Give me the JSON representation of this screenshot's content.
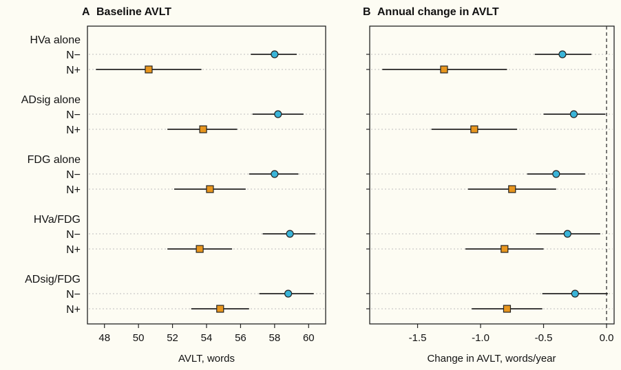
{
  "colors": {
    "background": "#fdfcf3",
    "n_minus": "#3ab4d8",
    "n_plus": "#e8961e",
    "stroke": "#222222",
    "grid": "#bdbdbd"
  },
  "groups": [
    "HVa alone",
    "ADsig alone",
    "FDG alone",
    "HVa/FDG",
    "ADsig/FDG"
  ],
  "row_labels": [
    "N−",
    "N+"
  ],
  "chart_data": [
    {
      "type": "forest",
      "panel_letter": "A",
      "title": "Baseline AVLT",
      "xlabel": "AVLT, words",
      "xlim": [
        47,
        61
      ],
      "ticks": [
        48,
        50,
        52,
        54,
        56,
        58,
        60
      ],
      "tick_labels": [
        "48",
        "50",
        "52",
        "54",
        "56",
        "58",
        "60"
      ],
      "reference_line": null,
      "grid": "horizontal dotted",
      "series": [
        {
          "group": "HVa alone",
          "row": "N−",
          "estimate": 58.0,
          "low": 56.6,
          "high": 59.3
        },
        {
          "group": "HVa alone",
          "row": "N+",
          "estimate": 50.6,
          "low": 47.5,
          "high": 53.7
        },
        {
          "group": "ADsig alone",
          "row": "N−",
          "estimate": 58.2,
          "low": 56.7,
          "high": 59.7
        },
        {
          "group": "ADsig alone",
          "row": "N+",
          "estimate": 53.8,
          "low": 51.7,
          "high": 55.8
        },
        {
          "group": "FDG alone",
          "row": "N−",
          "estimate": 58.0,
          "low": 56.5,
          "high": 59.4
        },
        {
          "group": "FDG alone",
          "row": "N+",
          "estimate": 54.2,
          "low": 52.1,
          "high": 56.3
        },
        {
          "group": "HVa/FDG",
          "row": "N−",
          "estimate": 58.9,
          "low": 57.3,
          "high": 60.4
        },
        {
          "group": "HVa/FDG",
          "row": "N+",
          "estimate": 53.6,
          "low": 51.7,
          "high": 55.5
        },
        {
          "group": "ADsig/FDG",
          "row": "N−",
          "estimate": 58.8,
          "low": 57.1,
          "high": 60.3
        },
        {
          "group": "ADsig/FDG",
          "row": "N+",
          "estimate": 54.8,
          "low": 53.1,
          "high": 56.5
        }
      ]
    },
    {
      "type": "forest",
      "panel_letter": "B",
      "title": "Annual change in AVLT",
      "xlabel": "Change in AVLT, words/year",
      "xlim": [
        -1.88,
        0.06
      ],
      "ticks": [
        -1.5,
        -1.0,
        -0.5,
        0.0
      ],
      "tick_labels": [
        "-1.5",
        "-1.0",
        "-0.5",
        "0.0"
      ],
      "reference_line": 0.0,
      "grid": "horizontal dotted",
      "series": [
        {
          "group": "HVa alone",
          "row": "N−",
          "estimate": -0.35,
          "low": -0.57,
          "high": -0.12
        },
        {
          "group": "HVa alone",
          "row": "N+",
          "estimate": -1.29,
          "low": -1.78,
          "high": -0.79
        },
        {
          "group": "ADsig alone",
          "row": "N−",
          "estimate": -0.26,
          "low": -0.5,
          "high": -0.01
        },
        {
          "group": "ADsig alone",
          "row": "N+",
          "estimate": -1.05,
          "low": -1.39,
          "high": -0.71
        },
        {
          "group": "FDG alone",
          "row": "N−",
          "estimate": -0.4,
          "low": -0.63,
          "high": -0.17
        },
        {
          "group": "FDG alone",
          "row": "N+",
          "estimate": -0.75,
          "low": -1.1,
          "high": -0.4
        },
        {
          "group": "HVa/FDG",
          "row": "N−",
          "estimate": -0.31,
          "low": -0.56,
          "high": -0.05
        },
        {
          "group": "HVa/FDG",
          "row": "N+",
          "estimate": -0.81,
          "low": -1.12,
          "high": -0.5
        },
        {
          "group": "ADsig/FDG",
          "row": "N−",
          "estimate": -0.25,
          "low": -0.51,
          "high": 0.01
        },
        {
          "group": "ADsig/FDG",
          "row": "N+",
          "estimate": -0.79,
          "low": -1.07,
          "high": -0.51
        }
      ]
    }
  ]
}
